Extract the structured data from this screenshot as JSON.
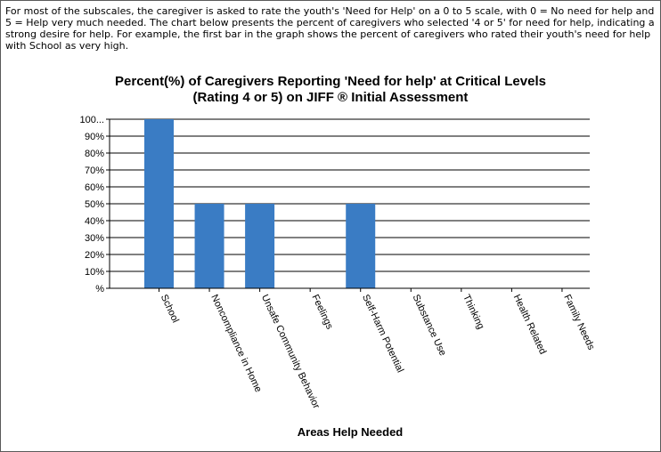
{
  "intro": {
    "text": "For most of the subscales, the caregiver is asked to rate the youth's 'Need for Help' on a 0 to 5 scale, with 0 = No need for help and 5 = Help very much needed. The chart below presents the percent of caregivers who selected '4 or 5' for need for help, indicating a strong desire for help. For example, the first bar in the graph shows the percent of caregivers who rated their youth's need for help with School as very high."
  },
  "chart_data": {
    "type": "bar",
    "title": "Percent(%) of Caregivers Reporting 'Need for help' at Critical Levels",
    "subtitle": "(Rating 4 or 5) on JIFF ® Initial Assessment",
    "xlabel": "Areas Help Needed",
    "ylabel": "",
    "categories": [
      "School",
      "Noncompliance in Home",
      "Unsafe Community Behavior",
      "Feelings",
      "Self-Harm Potential",
      "Substance Use",
      "Thinking",
      "Health Related",
      "Family Needs"
    ],
    "values": [
      100,
      50,
      50,
      0,
      50,
      0,
      0,
      0,
      0
    ],
    "ylim": [
      0,
      100
    ],
    "yticks": [
      "%",
      "10%",
      "20%",
      "30%",
      "40%",
      "50%",
      "60%",
      "70%",
      "80%",
      "90%",
      "100..."
    ],
    "grid": true,
    "bar_color": "#3a7cc4"
  }
}
